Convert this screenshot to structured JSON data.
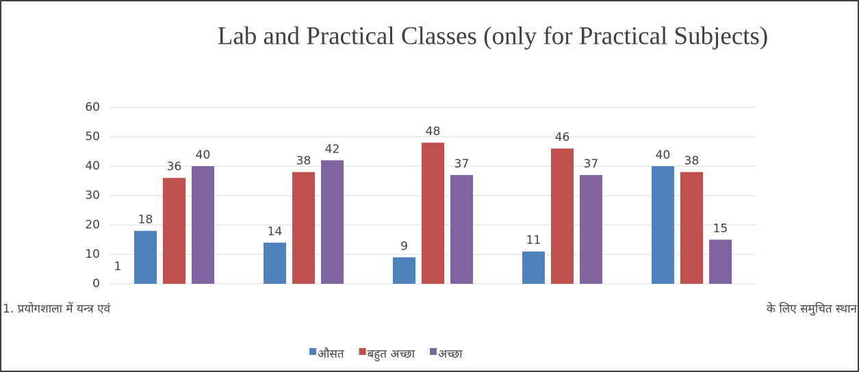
{
  "chart_data": {
    "type": "bar",
    "title": "Lab and Practical Classes (only for Practical Subjects)",
    "categories": [
      "1. प्रयोगशाला में यन्त्र एवं",
      null,
      null,
      null,
      "के लिए समुचित स्थान"
    ],
    "series": [
      {
        "name": "औसत",
        "color": "#4f81bd",
        "values": [
          18,
          14,
          9,
          11,
          40
        ]
      },
      {
        "name": "बहुत अच्छा",
        "color": "#c0504d",
        "values": [
          36,
          38,
          48,
          46,
          38
        ]
      },
      {
        "name": "अच्छा",
        "color": "#8064a2",
        "values": [
          40,
          42,
          37,
          37,
          15
        ]
      }
    ],
    "annotations": [
      "1"
    ],
    "ylim": [
      0,
      60
    ],
    "yticks": [
      0,
      10,
      20,
      30,
      40,
      50,
      60
    ],
    "grid": true,
    "legend": "bottom"
  }
}
